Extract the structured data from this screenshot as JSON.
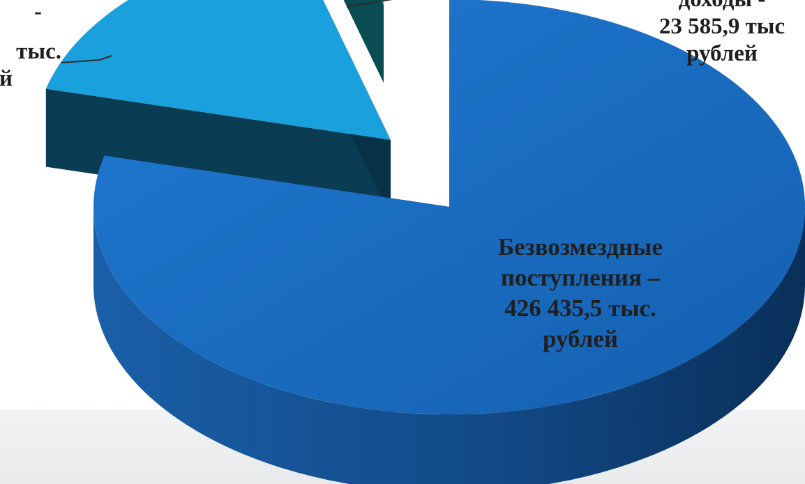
{
  "chart_data": {
    "type": "pie",
    "style": "3d-exploded",
    "slices": [
      {
        "label_lines": [
          "Безвозмездные",
          "поступления –",
          "426 435,5 тыс.",
          "рублей"
        ],
        "value": 426435.5,
        "unit": "тыс. рублей",
        "color": "#1a6fc4"
      },
      {
        "label_lines": [
          "-",
          "тыс.",
          "й"
        ],
        "value": 90000,
        "value_note": "label cropped; value estimated from slice size",
        "color": "#1aa0dc"
      },
      {
        "label_lines": [
          "доходы -",
          "23 585,9 тыс",
          "рублей"
        ],
        "value": 23585.9,
        "unit": "тыс. рублей",
        "color": "#17c9d8"
      }
    ]
  }
}
